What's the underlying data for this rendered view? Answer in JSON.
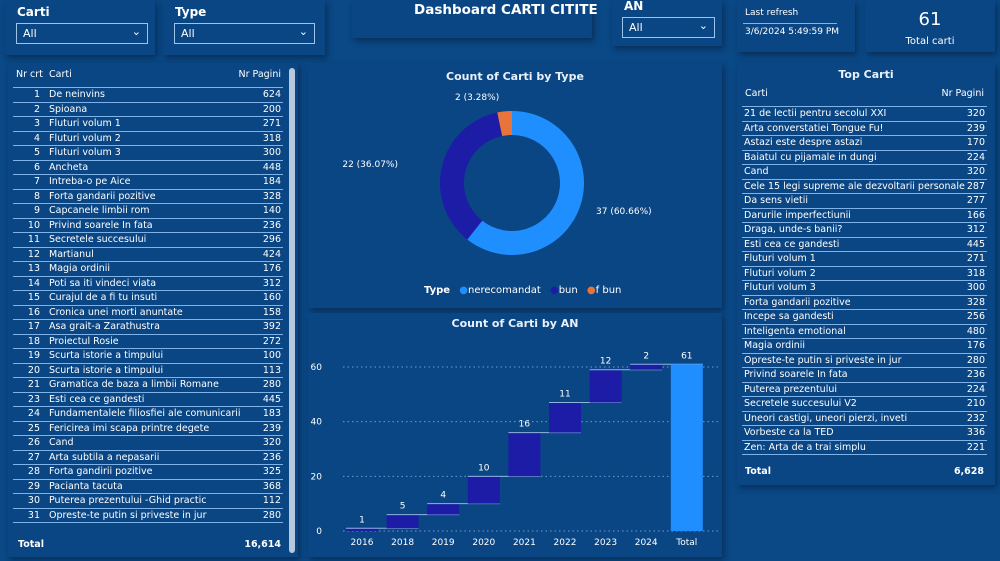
{
  "title": "Dashboard CARTI CITITE",
  "slicers": [
    {
      "label": "Carti",
      "value": "All"
    },
    {
      "label": "Type",
      "value": "All"
    },
    {
      "label": "AN",
      "value": "All"
    }
  ],
  "last_refresh": {
    "label": "Last refresh",
    "value": "3/6/2024 5:49:59 PM"
  },
  "kpi": {
    "value": "61",
    "label": "Total carti"
  },
  "colors": {
    "background": "#0a4886",
    "nerecomandat": "#1f8fff",
    "bun": "#1c1ca6",
    "f_bun": "#e8743b",
    "total": "#1f8fff"
  },
  "left_table": {
    "headers": [
      "Nr crt",
      "Carti",
      "Nr Pagini"
    ],
    "rows": [
      [
        "1",
        "De neinvins",
        "624"
      ],
      [
        "2",
        "Spioana",
        "200"
      ],
      [
        "3",
        "Fluturi volum 1",
        "271"
      ],
      [
        "4",
        "Fluturi volum 2",
        "318"
      ],
      [
        "5",
        "Fluturi volum 3",
        "300"
      ],
      [
        "6",
        "Ancheta",
        "448"
      ],
      [
        "7",
        "Intreba-o pe Aice",
        "184"
      ],
      [
        "8",
        "Forta gandarii pozitive",
        "328"
      ],
      [
        "9",
        "Capcanele limbii rom",
        "140"
      ],
      [
        "10",
        "Privind soarele In fata",
        "236"
      ],
      [
        "11",
        "Secretele succesului",
        "296"
      ],
      [
        "12",
        "Martianul",
        "424"
      ],
      [
        "13",
        "Magia ordinii",
        "176"
      ],
      [
        "14",
        "Poti sa iti vindeci viata",
        "312"
      ],
      [
        "15",
        "Curajul de a fi tu insuti",
        "160"
      ],
      [
        "16",
        "Cronica unei morti anuntate",
        "158"
      ],
      [
        "17",
        "Asa grait-a Zarathustra",
        "392"
      ],
      [
        "18",
        "Proiectul Rosie",
        "272"
      ],
      [
        "19",
        "Scurta istorie a timpului",
        "100"
      ],
      [
        "20",
        "Scurta istorie a timpului",
        "113"
      ],
      [
        "21",
        "Gramatica de baza a limbii Romane",
        "280"
      ],
      [
        "23",
        "Esti cea ce gandesti",
        "445"
      ],
      [
        "24",
        "Fundamentalele filiosfiei ale comunicarii",
        "183"
      ],
      [
        "25",
        "Fericirea imi scapa printre degete",
        "239"
      ],
      [
        "26",
        "Cand",
        "320"
      ],
      [
        "27",
        "Arta subtila a nepasarii",
        "236"
      ],
      [
        "28",
        "Forta gandirii pozitive",
        "325"
      ],
      [
        "29",
        "Pacianta tacuta",
        "368"
      ],
      [
        "30",
        "Puterea prezentului -Ghid practic",
        "112"
      ],
      [
        "31",
        "Opreste-te putin si priveste in jur",
        "280"
      ]
    ],
    "total_label": "Total",
    "total_value": "16,614"
  },
  "right_table": {
    "title": "Top Carti",
    "headers": [
      "Carti",
      "Nr Pagini"
    ],
    "rows": [
      [
        "21 de lectii pentru secolul XXI",
        "320"
      ],
      [
        "Arta converstatiei Tongue Fu!",
        "239"
      ],
      [
        "Astazi este despre astazi",
        "170"
      ],
      [
        "Baiatul cu pijamale in dungi",
        "224"
      ],
      [
        "Cand",
        "320"
      ],
      [
        "Cele 15 legi supreme ale dezvoltarii personale",
        "287"
      ],
      [
        "Da sens vietii",
        "277"
      ],
      [
        "Darurile imperfectiunii",
        "166"
      ],
      [
        "Draga, unde-s banii?",
        "312"
      ],
      [
        "Esti cea ce gandesti",
        "445"
      ],
      [
        "Fluturi volum 1",
        "271"
      ],
      [
        "Fluturi volum 2",
        "318"
      ],
      [
        "Fluturi volum 3",
        "300"
      ],
      [
        "Forta gandarii pozitive",
        "328"
      ],
      [
        "Incepe sa gandesti",
        "256"
      ],
      [
        "Inteligenta emotional",
        "480"
      ],
      [
        "Magia ordinii",
        "176"
      ],
      [
        "Opreste-te putin si priveste in jur",
        "280"
      ],
      [
        "Privind soarele In fata",
        "236"
      ],
      [
        "Puterea prezentului",
        "224"
      ],
      [
        "Secretele succesului V2",
        "210"
      ],
      [
        "Uneori castigi, uneori pierzi, inveti",
        "232"
      ],
      [
        "Vorbeste ca la TED",
        "336"
      ],
      [
        "Zen: Arta de a trai simplu",
        "221"
      ]
    ],
    "total_label": "Total",
    "total_value": "6,628"
  },
  "chart_data": [
    {
      "type": "pie",
      "title": "Count of Carti by Type",
      "donut": true,
      "legend_title": "Type",
      "legend_position": "bottom",
      "slices": [
        {
          "name": "nerecomandat",
          "value": 37,
          "label": "37 (60.66%)"
        },
        {
          "name": "bun",
          "value": 22,
          "label": "22 (36.07%)"
        },
        {
          "name": "f bun",
          "value": 2,
          "label": "2 (3.28%)"
        }
      ]
    },
    {
      "type": "bar",
      "subtype": "waterfall",
      "title": "Count of Carti by AN",
      "categories": [
        "2016",
        "2018",
        "2019",
        "2020",
        "2021",
        "2022",
        "2023",
        "2024",
        "Total"
      ],
      "values": [
        1,
        5,
        4,
        10,
        16,
        11,
        12,
        2,
        61
      ],
      "ylim": [
        0,
        70
      ],
      "yticks": [
        0,
        20,
        40,
        60
      ],
      "grid": true
    }
  ]
}
